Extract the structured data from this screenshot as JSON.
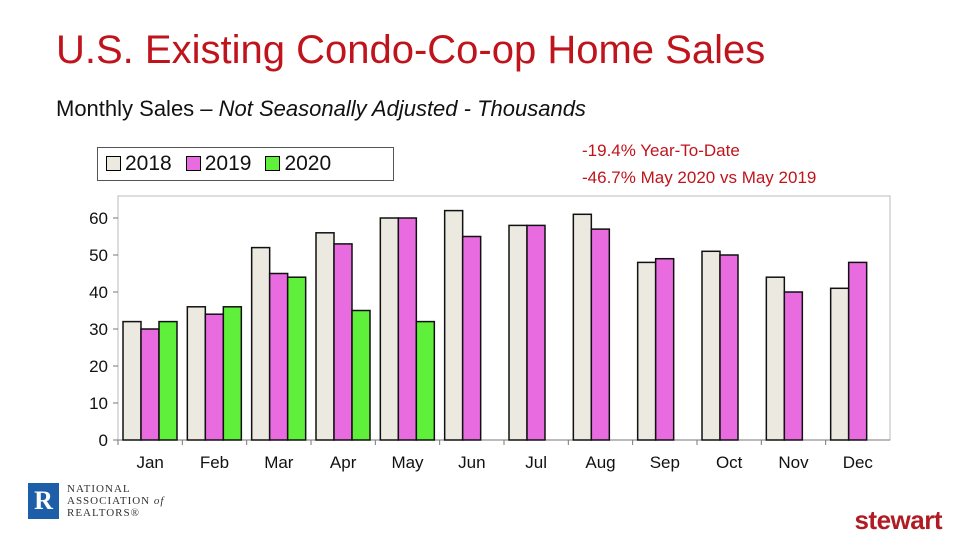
{
  "title": "U.S. Existing Condo-Co-op Home Sales",
  "subtitle": {
    "plain": "Monthly Sales – ",
    "italic": "Not Seasonally Adjusted - Thousands"
  },
  "annotations": [
    "-19.4% Year-To-Date",
    "-46.7% May 2020 vs May 2019"
  ],
  "logos": {
    "left": "NATIONAL ASSOCIATION of REALTORS®",
    "right": "stewart"
  },
  "chart_data": {
    "type": "bar",
    "categories": [
      "Jan",
      "Feb",
      "Mar",
      "Apr",
      "May",
      "Jun",
      "Jul",
      "Aug",
      "Sep",
      "Oct",
      "Nov",
      "Dec"
    ],
    "series": [
      {
        "name": "2018",
        "color": "#ece9e0",
        "values": [
          32,
          36,
          52,
          56,
          60,
          62,
          58,
          61,
          48,
          51,
          44,
          41
        ]
      },
      {
        "name": "2019",
        "color": "#e86ce0",
        "values": [
          30,
          34,
          45,
          53,
          60,
          55,
          58,
          57,
          49,
          50,
          40,
          48
        ]
      },
      {
        "name": "2020",
        "color": "#5ef03a",
        "values": [
          32,
          36,
          44,
          35,
          32,
          null,
          null,
          null,
          null,
          null,
          null,
          null
        ]
      }
    ],
    "yticks": [
      0,
      10,
      20,
      30,
      40,
      50,
      60
    ],
    "ylim": [
      0,
      65
    ],
    "legend": "top-left",
    "grid": false
  }
}
